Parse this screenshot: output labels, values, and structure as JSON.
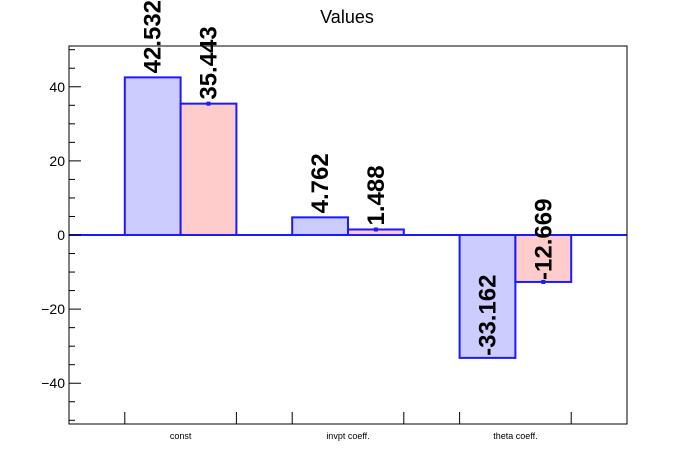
{
  "chart_data": {
    "type": "bar",
    "title": "Values",
    "categories": [
      "const",
      "invpt coeff.",
      "theta coeff."
    ],
    "series": [
      {
        "values": [
          42.532,
          4.762,
          -33.162
        ],
        "labels": [
          "42.532",
          "4.762",
          "-33.162"
        ],
        "color": "#ccccff"
      },
      {
        "values": [
          35.443,
          1.488,
          -12.669
        ],
        "labels": [
          "35.443",
          "1.488",
          "-12.669"
        ],
        "color": "#ffcccc"
      }
    ],
    "ylim": [
      -51,
      51
    ],
    "yticks": [
      -40,
      -20,
      0,
      20,
      40
    ],
    "ytick_labels": [
      "−40",
      "−20",
      "0",
      "20",
      "40"
    ],
    "bar_edge_color": "#1a1aff",
    "grid": false,
    "legend": "none"
  }
}
